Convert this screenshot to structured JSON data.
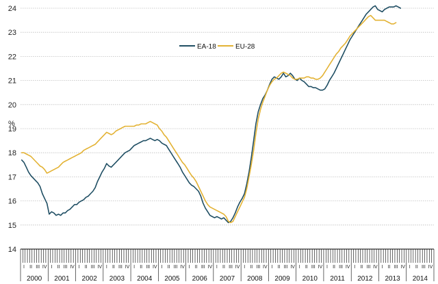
{
  "chart_data": {
    "type": "line",
    "ylabel": "%",
    "ylim": [
      14,
      24
    ],
    "yticks": [
      14,
      15,
      16,
      17,
      18,
      19,
      20,
      21,
      22,
      23,
      24
    ],
    "grid": true,
    "legend": "top-center",
    "x_start": "2000-01",
    "years": [
      "2000",
      "2001",
      "2002",
      "2003",
      "2004",
      "2005",
      "2006",
      "2007",
      "2008",
      "2009",
      "2010",
      "2011",
      "2012",
      "2013",
      "2014"
    ],
    "quarter_labels": [
      "I",
      "II",
      "III",
      "IV"
    ],
    "series": [
      {
        "name": "EA-18",
        "color": "#1f4e63",
        "values": [
          17.7,
          17.6,
          17.4,
          17.2,
          17.05,
          16.95,
          16.85,
          16.75,
          16.6,
          16.3,
          16.1,
          15.9,
          15.45,
          15.55,
          15.5,
          15.4,
          15.45,
          15.4,
          15.5,
          15.5,
          15.6,
          15.65,
          15.75,
          15.85,
          15.85,
          15.95,
          16.0,
          16.05,
          16.15,
          16.2,
          16.3,
          16.4,
          16.55,
          16.8,
          17.0,
          17.2,
          17.35,
          17.55,
          17.45,
          17.4,
          17.5,
          17.6,
          17.7,
          17.8,
          17.9,
          18.0,
          18.05,
          18.1,
          18.2,
          18.3,
          18.35,
          18.4,
          18.45,
          18.5,
          18.5,
          18.55,
          18.6,
          18.55,
          18.5,
          18.55,
          18.5,
          18.4,
          18.35,
          18.3,
          18.15,
          18.0,
          17.85,
          17.7,
          17.55,
          17.4,
          17.2,
          17.05,
          16.9,
          16.75,
          16.65,
          16.6,
          16.5,
          16.4,
          16.2,
          15.9,
          15.7,
          15.55,
          15.4,
          15.35,
          15.3,
          15.35,
          15.3,
          15.25,
          15.3,
          15.2,
          15.1,
          15.15,
          15.3,
          15.5,
          15.75,
          15.95,
          16.1,
          16.3,
          16.7,
          17.2,
          17.8,
          18.5,
          19.2,
          19.7,
          20.0,
          20.25,
          20.4,
          20.6,
          20.85,
          21.05,
          21.15,
          21.1,
          21.05,
          21.15,
          21.3,
          21.15,
          21.2,
          21.3,
          21.2,
          21.05,
          21.0,
          21.1,
          21.0,
          20.95,
          20.85,
          20.75,
          20.75,
          20.7,
          20.7,
          20.65,
          20.6,
          20.6,
          20.65,
          20.8,
          21.0,
          21.15,
          21.3,
          21.5,
          21.7,
          21.9,
          22.1,
          22.3,
          22.5,
          22.7,
          22.85,
          23.0,
          23.15,
          23.3,
          23.45,
          23.6,
          23.75,
          23.85,
          23.95,
          24.05,
          24.1,
          23.95,
          23.9,
          23.85,
          23.95,
          24.0,
          24.05,
          24.05,
          24.05,
          24.1,
          24.05,
          24.0
        ]
      },
      {
        "name": "EU-28",
        "color": "#e3b233",
        "values": [
          18.0,
          18.0,
          17.95,
          17.9,
          17.85,
          17.75,
          17.65,
          17.55,
          17.45,
          17.4,
          17.3,
          17.15,
          17.2,
          17.25,
          17.3,
          17.35,
          17.4,
          17.5,
          17.6,
          17.65,
          17.7,
          17.75,
          17.8,
          17.85,
          17.9,
          17.95,
          18.0,
          18.1,
          18.15,
          18.2,
          18.25,
          18.3,
          18.35,
          18.45,
          18.55,
          18.65,
          18.75,
          18.85,
          18.8,
          18.75,
          18.8,
          18.9,
          18.95,
          19.0,
          19.05,
          19.1,
          19.1,
          19.1,
          19.1,
          19.1,
          19.15,
          19.15,
          19.2,
          19.2,
          19.2,
          19.25,
          19.3,
          19.25,
          19.2,
          19.15,
          19.0,
          18.9,
          18.75,
          18.65,
          18.5,
          18.35,
          18.2,
          18.05,
          17.9,
          17.75,
          17.6,
          17.5,
          17.35,
          17.2,
          17.05,
          16.95,
          16.8,
          16.6,
          16.4,
          16.2,
          16.0,
          15.85,
          15.75,
          15.7,
          15.65,
          15.6,
          15.55,
          15.5,
          15.45,
          15.35,
          15.15,
          15.1,
          15.15,
          15.35,
          15.55,
          15.75,
          15.95,
          16.15,
          16.5,
          17.0,
          17.5,
          18.1,
          18.8,
          19.4,
          19.8,
          20.1,
          20.35,
          20.6,
          20.8,
          20.95,
          21.05,
          21.1,
          21.2,
          21.3,
          21.35,
          21.3,
          21.25,
          21.2,
          21.1,
          21.05,
          21.05,
          21.1,
          21.1,
          21.1,
          21.15,
          21.15,
          21.1,
          21.1,
          21.05,
          21.05,
          21.1,
          21.2,
          21.35,
          21.5,
          21.65,
          21.8,
          21.95,
          22.1,
          22.2,
          22.35,
          22.45,
          22.55,
          22.7,
          22.85,
          22.95,
          23.05,
          23.15,
          23.25,
          23.35,
          23.45,
          23.55,
          23.65,
          23.7,
          23.6,
          23.5,
          23.5,
          23.5,
          23.5,
          23.5,
          23.45,
          23.4,
          23.35,
          23.35,
          23.4
        ]
      }
    ]
  }
}
